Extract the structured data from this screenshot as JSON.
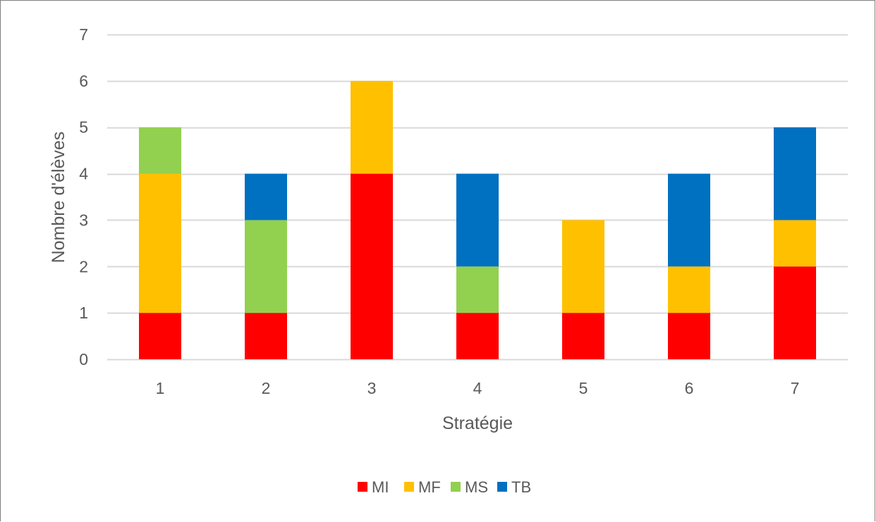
{
  "chart_data": {
    "type": "bar",
    "stacked": true,
    "categories": [
      "1",
      "2",
      "3",
      "4",
      "5",
      "6",
      "7"
    ],
    "series": [
      {
        "name": "MI",
        "color": "#ff0000",
        "values": [
          1,
          1,
          4,
          1,
          1,
          1,
          2
        ]
      },
      {
        "name": "MF",
        "color": "#ffc000",
        "values": [
          3,
          0,
          2,
          0,
          2,
          1,
          1
        ]
      },
      {
        "name": "MS",
        "color": "#92d050",
        "values": [
          1,
          2,
          0,
          1,
          0,
          0,
          0
        ]
      },
      {
        "name": "TB",
        "color": "#0070c0",
        "values": [
          0,
          1,
          0,
          2,
          0,
          2,
          2
        ]
      }
    ],
    "xlabel": "Stratégie",
    "ylabel": "Nombre d'élèves",
    "ylim": [
      0,
      7
    ],
    "yticks": [
      "0",
      "1",
      "2",
      "3",
      "4",
      "5",
      "6",
      "7"
    ],
    "grid": true,
    "legend_position": "bottom"
  }
}
